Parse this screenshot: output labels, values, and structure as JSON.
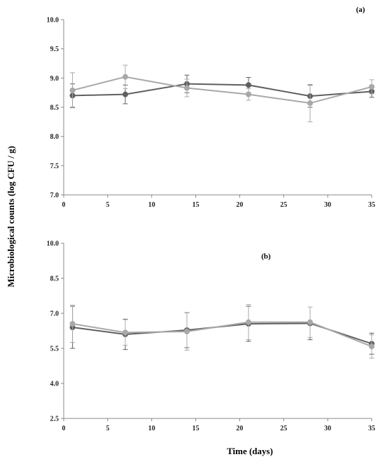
{
  "chart_data": [
    {
      "type": "line",
      "panel_label": "(a)",
      "xlim": [
        0,
        35
      ],
      "ylim": [
        7.0,
        10.0
      ],
      "x_ticks": [
        "0",
        "5",
        "10",
        "15",
        "20",
        "25",
        "30",
        "35"
      ],
      "y_ticks": [
        "7.0",
        "7.5",
        "8.0",
        "8.5",
        "9.0",
        "9.5",
        "10.0"
      ],
      "grid": false,
      "series": [
        {
          "color": "#5f5f5f",
          "marker": "circle",
          "x": [
            1,
            7,
            14,
            21,
            28,
            35
          ],
          "y": [
            8.7,
            8.72,
            8.9,
            8.88,
            8.69,
            8.77
          ],
          "err": [
            0.2,
            0.16,
            0.15,
            0.13,
            0.19,
            0.1
          ]
        },
        {
          "color": "#a8a8a8",
          "marker": "circle",
          "x": [
            1,
            7,
            14,
            21,
            28,
            35
          ],
          "y": [
            8.79,
            9.02,
            8.83,
            8.72,
            8.57,
            8.85
          ],
          "err": [
            0.3,
            0.2,
            0.15,
            0.1,
            0.32,
            0.12
          ]
        }
      ]
    },
    {
      "type": "line",
      "panel_label": "(b)",
      "xlim": [
        0,
        35
      ],
      "ylim": [
        2.5,
        10.0
      ],
      "x_ticks": [
        "0",
        "5",
        "10",
        "15",
        "20",
        "25",
        "30",
        "35"
      ],
      "y_ticks": [
        "2.5",
        "4.0",
        "5.5",
        "7.0",
        "8.5",
        "10.0"
      ],
      "grid": false,
      "series": [
        {
          "color": "#5f5f5f",
          "marker": "circle",
          "x": [
            1,
            7,
            14,
            21,
            28,
            35
          ],
          "y": [
            6.4,
            6.1,
            6.28,
            6.55,
            6.57,
            5.7
          ],
          "err": [
            0.9,
            0.65,
            0.75,
            0.75,
            0.7,
            0.45
          ]
        },
        {
          "color": "#a8a8a8",
          "marker": "circle",
          "x": [
            1,
            7,
            14,
            21,
            28,
            35
          ],
          "y": [
            6.55,
            6.18,
            6.22,
            6.62,
            6.62,
            5.58
          ],
          "err": [
            0.8,
            0.55,
            0.8,
            0.75,
            0.65,
            0.5
          ]
        }
      ]
    }
  ],
  "labels": {
    "ylabel": "Microbiological counts (log CFU / g)",
    "xlabel": "Time (days)"
  }
}
